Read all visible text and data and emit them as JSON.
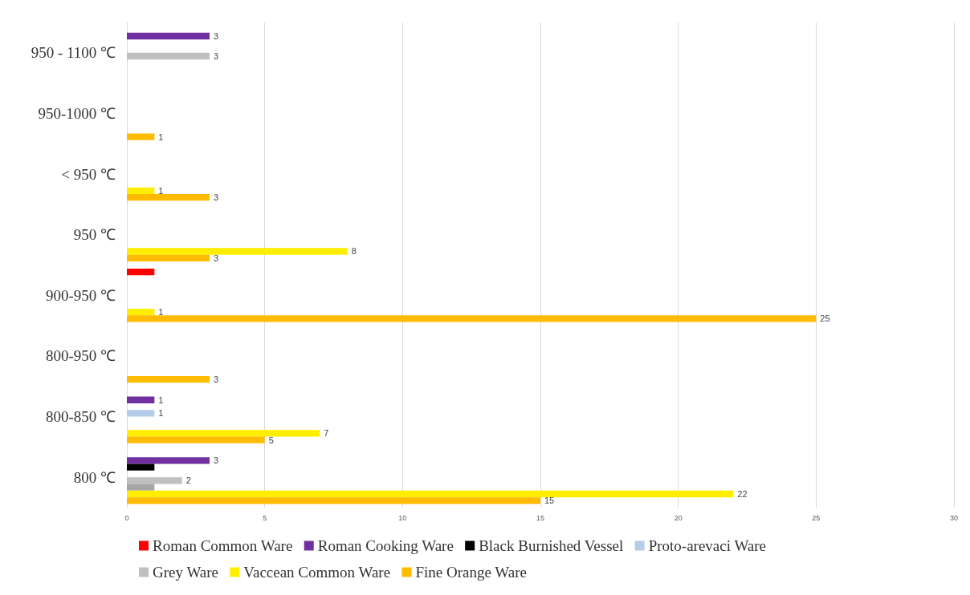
{
  "chart_data": {
    "type": "bar",
    "orientation": "horizontal",
    "categories": [
      "950 - 1100 ℃",
      "950-1000 ℃",
      "< 950 ℃",
      "950 ℃",
      "900-950 ℃",
      "800-950 ℃",
      "800-850 ℃",
      "800 ℃"
    ],
    "series": [
      {
        "name": "Roman Common Ware",
        "color": "#ff0000",
        "values": [
          null,
          null,
          null,
          null,
          1,
          null,
          null,
          null
        ],
        "value_labels": [
          null,
          null,
          null,
          null,
          null,
          null,
          null,
          null
        ]
      },
      {
        "name": "Roman Cooking Ware",
        "color": "#7030a0",
        "values": [
          3,
          null,
          null,
          null,
          null,
          null,
          1,
          3
        ],
        "value_labels": [
          "3",
          null,
          null,
          null,
          null,
          null,
          "1",
          "3"
        ]
      },
      {
        "name": "Black Burnished Vessel",
        "color": "#000000",
        "values": [
          null,
          null,
          null,
          null,
          null,
          null,
          null,
          1
        ],
        "value_labels": [
          null,
          null,
          null,
          null,
          null,
          null,
          null,
          null
        ]
      },
      {
        "name": "Proto-arevaci Ware",
        "color": "#b4cce8",
        "values": [
          null,
          null,
          null,
          null,
          null,
          null,
          1,
          null
        ],
        "value_labels": [
          null,
          null,
          null,
          null,
          null,
          null,
          "1",
          null
        ]
      },
      {
        "name": "Grey Ware",
        "color": "#bfbfbf",
        "values": [
          3,
          null,
          null,
          null,
          null,
          null,
          null,
          2
        ],
        "value_labels": [
          "3",
          null,
          null,
          null,
          null,
          null,
          null,
          "2"
        ]
      },
      {
        "color": "#a5a5a5",
        "values": [
          null,
          null,
          null,
          null,
          null,
          null,
          null,
          1
        ],
        "value_labels": [
          null,
          null,
          null,
          null,
          null,
          null,
          null,
          null
        ]
      },
      {
        "name": "Vaccean Common Ware",
        "color": "#ffee00",
        "values": [
          null,
          null,
          1,
          8,
          1,
          null,
          7,
          22
        ],
        "value_labels": [
          null,
          null,
          "1",
          "8",
          "1",
          null,
          "7",
          "22"
        ]
      },
      {
        "name": "Fine Orange Ware",
        "color": "#ffbb00",
        "values": [
          null,
          1,
          3,
          3,
          25,
          3,
          5,
          15
        ],
        "value_labels": [
          null,
          "1",
          "3",
          "3",
          "25",
          "3",
          "5",
          "15"
        ]
      }
    ],
    "xlim": [
      0,
      30
    ],
    "xticks": [
      0,
      5,
      10,
      15,
      20,
      25,
      30
    ],
    "grid": "x",
    "legend": "bottom"
  }
}
